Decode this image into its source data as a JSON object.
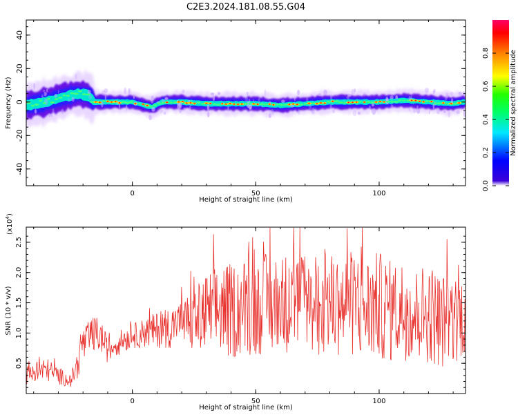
{
  "title": "C2E3.2024.181.08.55.G04",
  "colors": {
    "snr_line": "#e8302c",
    "ridge_low": "#5a00e0",
    "ridge_mid": "#00e5d0",
    "ridge_high": "#ff1a1a"
  },
  "chart_data": [
    {
      "type": "heatmap",
      "ylabel": "Frequency (Hz)",
      "xlabel": "Height of straight line (km)",
      "xlim": [
        -43,
        135
      ],
      "ylim": [
        -50,
        49
      ],
      "xticks": [
        0,
        50,
        100
      ],
      "yticks": [
        -40,
        -20,
        0,
        20,
        40
      ],
      "grid": false,
      "colorbar": {
        "label": "Normalized spectral amplitude",
        "range": [
          0,
          1
        ],
        "ticks": [
          "0.0",
          "0.2",
          "0.4",
          "0.6",
          "0.8"
        ]
      },
      "ridge": {
        "x": [
          -43,
          -35,
          -28,
          -22,
          -18,
          -15,
          -10,
          0,
          5,
          8,
          12,
          20,
          30,
          40,
          50,
          60,
          70,
          80,
          90,
          100,
          110,
          120,
          130,
          134
        ],
        "y": [
          -2,
          0,
          3,
          5,
          4,
          0,
          0,
          0,
          -2,
          -3,
          0,
          0,
          -1,
          -1,
          -1,
          -2,
          -1,
          0,
          0,
          0,
          1,
          0,
          -1,
          0
        ]
      }
    },
    {
      "type": "line",
      "ylabel": "SNR (10 * v/v)",
      "yscale_label": "(x10",
      "yscale_exp": "4",
      "yscale_close": ")",
      "xlabel": "Height of straight line (km)",
      "xlim": [
        -43,
        135
      ],
      "ylim": [
        0,
        2.75
      ],
      "xticks": [
        0,
        50,
        100
      ],
      "yticks": [
        "0.5",
        "1.0",
        "1.5",
        "2.0",
        "2.5"
      ],
      "grid": false,
      "series": [
        {
          "x": [
            -43,
            -40,
            -35,
            -30,
            -25,
            -22,
            -20,
            -15,
            -12,
            -10,
            -5,
            0,
            5,
            10,
            15,
            20,
            25,
            30,
            35,
            40,
            45,
            50,
            55,
            60,
            65,
            70,
            75,
            80,
            85,
            90,
            95,
            100,
            105,
            110,
            115,
            120,
            125,
            130,
            134
          ],
          "values": [
            0.3,
            0.35,
            0.4,
            0.3,
            0.2,
            0.5,
            0.8,
            1.0,
            0.9,
            0.7,
            0.85,
            0.95,
            1.0,
            1.05,
            1.1,
            1.15,
            1.2,
            1.3,
            1.4,
            1.35,
            1.45,
            1.4,
            1.5,
            1.45,
            1.55,
            1.5,
            1.4,
            1.5,
            1.45,
            1.5,
            1.4,
            1.45,
            1.35,
            1.4,
            1.3,
            1.35,
            1.2,
            1.25,
            1.3
          ],
          "amplitude": [
            0.15,
            0.2,
            0.2,
            0.15,
            0.1,
            0.25,
            0.3,
            0.3,
            0.25,
            0.2,
            0.2,
            0.2,
            0.25,
            0.3,
            0.35,
            0.4,
            0.55,
            0.7,
            0.75,
            0.8,
            0.8,
            0.8,
            0.85,
            0.85,
            0.85,
            0.85,
            0.85,
            0.85,
            0.85,
            0.9,
            0.9,
            0.9,
            0.85,
            0.85,
            0.8,
            0.85,
            0.8,
            0.75,
            0.7
          ]
        }
      ]
    }
  ]
}
